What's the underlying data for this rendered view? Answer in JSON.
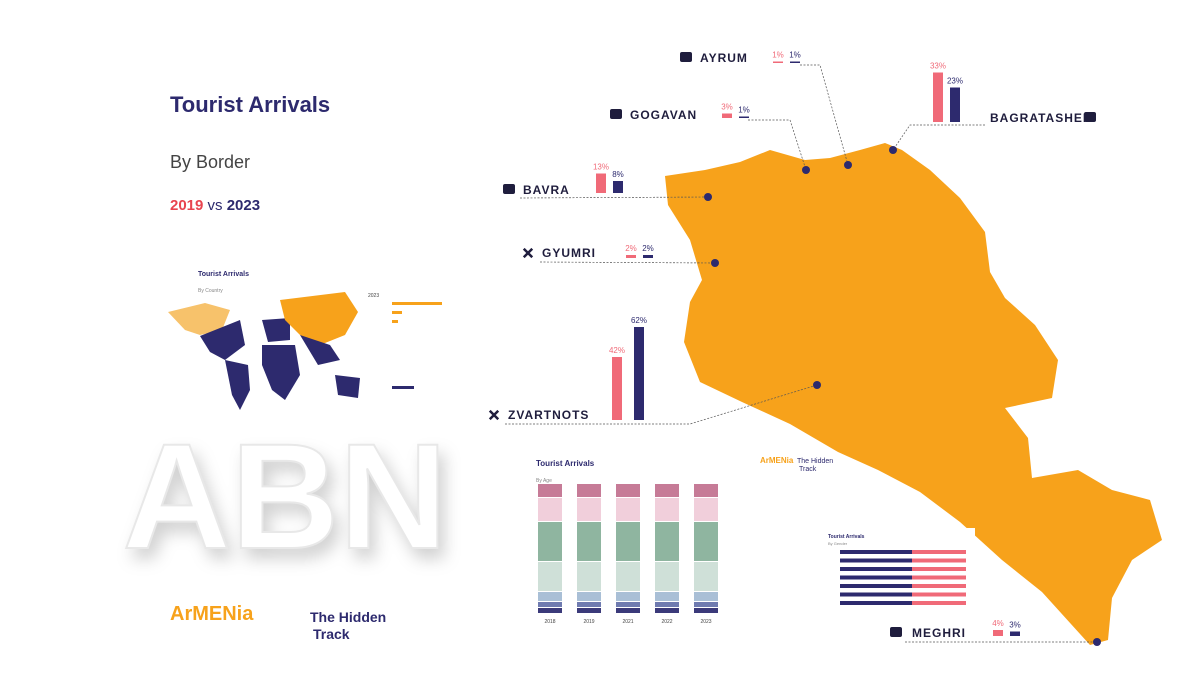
{
  "header": {
    "title": "Tourist Arrivals",
    "subtitle": "By Border",
    "year_a": "2019",
    "vs": "vs",
    "year_b": "2023"
  },
  "borders": [
    {
      "name": "AYRUM",
      "values": [
        1,
        1
      ],
      "value_labels": [
        "1%",
        "1%"
      ]
    },
    {
      "name": "GOGAVAN",
      "values": [
        3,
        1
      ],
      "value_labels": [
        "3%",
        "1%"
      ]
    },
    {
      "name": "BAGRATASHEN",
      "values": [
        33,
        23
      ],
      "value_labels": [
        "33%",
        "23%"
      ]
    },
    {
      "name": "BAVRA",
      "values": [
        13,
        8
      ],
      "value_labels": [
        "13%",
        "8%"
      ]
    },
    {
      "name": "GYUMRI",
      "values": [
        2,
        2
      ],
      "value_labels": [
        "2%",
        "2%"
      ]
    },
    {
      "name": "ZVARTNOTS",
      "values": [
        42,
        62
      ],
      "value_labels": [
        "42%",
        "62%"
      ]
    },
    {
      "name": "MEGHRI",
      "values": [
        4,
        3
      ],
      "value_labels": [
        "4%",
        "3%"
      ]
    }
  ],
  "mini_country": {
    "title": "Tourist Arrivals",
    "subtitle": "By Country",
    "list_title": "2023"
  },
  "mini_age": {
    "title": "Tourist Arrivals",
    "subtitle": "By Age",
    "years": [
      "2018",
      "2019",
      "2021",
      "2022",
      "2023"
    ]
  },
  "mini_hbar": {
    "title": "Tourist Arrivals",
    "subtitle": "By Gender"
  },
  "watermark": "ABN",
  "logo": {
    "brand": "ArMENia",
    "tagline_1": "The Hidden",
    "tagline_2": "Track"
  }
}
